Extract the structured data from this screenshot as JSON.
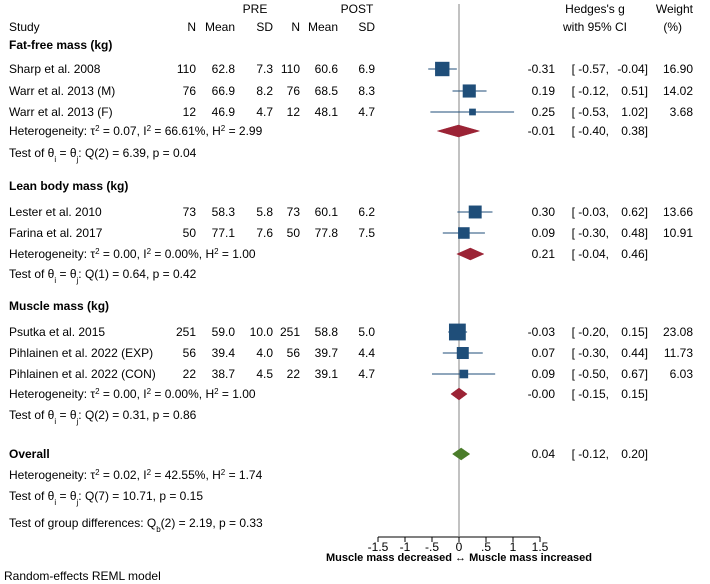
{
  "chart_data": {
    "type": "forest",
    "method": "Random-effects REML model",
    "headers": {
      "study": "Study",
      "pre": "PRE",
      "post": "POST",
      "n": "N",
      "mean": "Mean",
      "sd": "SD",
      "effect_line1": "Hedges's g",
      "effect_line2": "with 95% CI",
      "weight_line1": "Weight",
      "weight_line2": "(%)"
    },
    "groups": [
      {
        "title": "Fat-free mass (kg)",
        "studies": [
          {
            "name": "Sharp et al. 2008",
            "pre_n": "110",
            "pre_mean": "62.8",
            "pre_sd": "7.3",
            "post_n": "110",
            "post_mean": "60.6",
            "post_sd": "6.9",
            "g": -0.31,
            "lo": -0.57,
            "hi": -0.04,
            "ci_text": "-0.31 [ -0.57, -0.04]",
            "weight": "16.90"
          },
          {
            "name": "Warr et al. 2013 (M)",
            "pre_n": "76",
            "pre_mean": "66.9",
            "pre_sd": "8.2",
            "post_n": "76",
            "post_mean": "68.5",
            "post_sd": "8.3",
            "g": 0.19,
            "lo": -0.12,
            "hi": 0.51,
            "ci_text": "0.19 [ -0.12, 0.51]",
            "weight": "14.02"
          },
          {
            "name": "Warr et al. 2013 (F)",
            "pre_n": "12",
            "pre_mean": "46.9",
            "pre_sd": "4.7",
            "post_n": "12",
            "post_mean": "48.1",
            "post_sd": "4.7",
            "g": 0.25,
            "lo": -0.53,
            "hi": 1.02,
            "ci_text": "0.25 [ -0.53, 1.02]",
            "weight": "3.68"
          }
        ],
        "heterogeneity": {
          "prefix": "Heterogeneity: τ",
          "tau2": "0.07",
          "i2": "66.61%",
          "h2": "2.99"
        },
        "pooled": {
          "g": -0.01,
          "lo": -0.4,
          "hi": 0.38,
          "ci_text": "-0.01 [ -0.40, 0.38]"
        },
        "test": {
          "df": "2",
          "q": "6.39",
          "p": "0.04"
        }
      },
      {
        "title": "Lean body mass (kg)",
        "studies": [
          {
            "name": "Lester et al. 2010",
            "pre_n": "73",
            "pre_mean": "58.3",
            "pre_sd": "5.8",
            "post_n": "73",
            "post_mean": "60.1",
            "post_sd": "6.2",
            "g": 0.3,
            "lo": -0.03,
            "hi": 0.62,
            "ci_text": "0.30 [ -0.03, 0.62]",
            "weight": "13.66"
          },
          {
            "name": "Farina et al. 2017",
            "pre_n": "50",
            "pre_mean": "77.1",
            "pre_sd": "7.6",
            "post_n": "50",
            "post_mean": "77.8",
            "post_sd": "7.5",
            "g": 0.09,
            "lo": -0.3,
            "hi": 0.48,
            "ci_text": "0.09 [ -0.30, 0.48]",
            "weight": "10.91"
          }
        ],
        "heterogeneity": {
          "prefix": "Heterogeneity: τ",
          "tau2": "0.00",
          "i2": "0.00%",
          "h2": "1.00"
        },
        "pooled": {
          "g": 0.21,
          "lo": -0.04,
          "hi": 0.46,
          "ci_text": "0.21 [ -0.04, 0.46]"
        },
        "test": {
          "df": "1",
          "q": "0.64",
          "p": "0.42"
        }
      },
      {
        "title": "Muscle mass (kg)",
        "studies": [
          {
            "name": "Psutka et al. 2015",
            "pre_n": "251",
            "pre_mean": "59.0",
            "pre_sd": "10.0",
            "post_n": "251",
            "post_mean": "58.8",
            "post_sd": "5.0",
            "g": -0.03,
            "lo": -0.2,
            "hi": 0.15,
            "ci_text": "-0.03 [ -0.20, 0.15]",
            "weight": "23.08"
          },
          {
            "name": "Pihlainen et al. 2022 (EXP)",
            "pre_n": "56",
            "pre_mean": "39.4",
            "pre_sd": "4.0",
            "post_n": "56",
            "post_mean": "39.7",
            "post_sd": "4.4",
            "g": 0.07,
            "lo": -0.3,
            "hi": 0.44,
            "ci_text": "0.07 [ -0.30, 0.44]",
            "weight": "11.73"
          },
          {
            "name": "Pihlainen et al. 2022 (CON)",
            "pre_n": "22",
            "pre_mean": "38.7",
            "pre_sd": "4.5",
            "post_n": "22",
            "post_mean": "39.1",
            "post_sd": "4.7",
            "g": 0.09,
            "lo": -0.5,
            "hi": 0.67,
            "ci_text": "0.09 [ -0.50, 0.67]",
            "weight": "6.03"
          }
        ],
        "heterogeneity": {
          "prefix": "Heterogeneity: τ",
          "tau2": "0.00",
          "i2": "0.00%",
          "h2": "1.00"
        },
        "pooled": {
          "g": -0.0,
          "lo": -0.15,
          "hi": 0.15,
          "ci_text": "-0.00 [ -0.15, 0.15]"
        },
        "test": {
          "df": "2",
          "q": "0.31",
          "p": "0.86"
        }
      }
    ],
    "overall": {
      "title": "Overall",
      "heterogeneity": {
        "prefix": "Heterogeneity: τ",
        "tau2": "0.02",
        "i2": "42.55%",
        "h2": "1.74"
      },
      "pooled": {
        "g": 0.04,
        "lo": -0.12,
        "hi": 0.2,
        "ci_text": "0.04 [ -0.12, 0.20]"
      },
      "test": {
        "df": "7",
        "q": "10.71",
        "p": "0.15"
      }
    },
    "group_difference": {
      "label": "Test of group differences: Q",
      "df": "2",
      "q": "2.19",
      "p": "0.33"
    },
    "x_axis": {
      "range": [
        -1.5,
        1.5
      ],
      "ticks": [
        -1.5,
        -1,
        -0.5,
        0,
        0.5,
        1,
        1.5
      ],
      "tick_labels": [
        "-1.5",
        "-1",
        "-.5",
        "0",
        ".5",
        "1",
        "1.5"
      ],
      "label": "Muscle mass decreased ↔ Muscle mass increased",
      "reference_line": 0
    },
    "colors": {
      "study_marker": "#1f4e79",
      "group_diamond": "#9b2335",
      "overall_diamond": "#4a7c2a",
      "ci_line": "#1f4e79",
      "reference_line": "#999999"
    }
  }
}
